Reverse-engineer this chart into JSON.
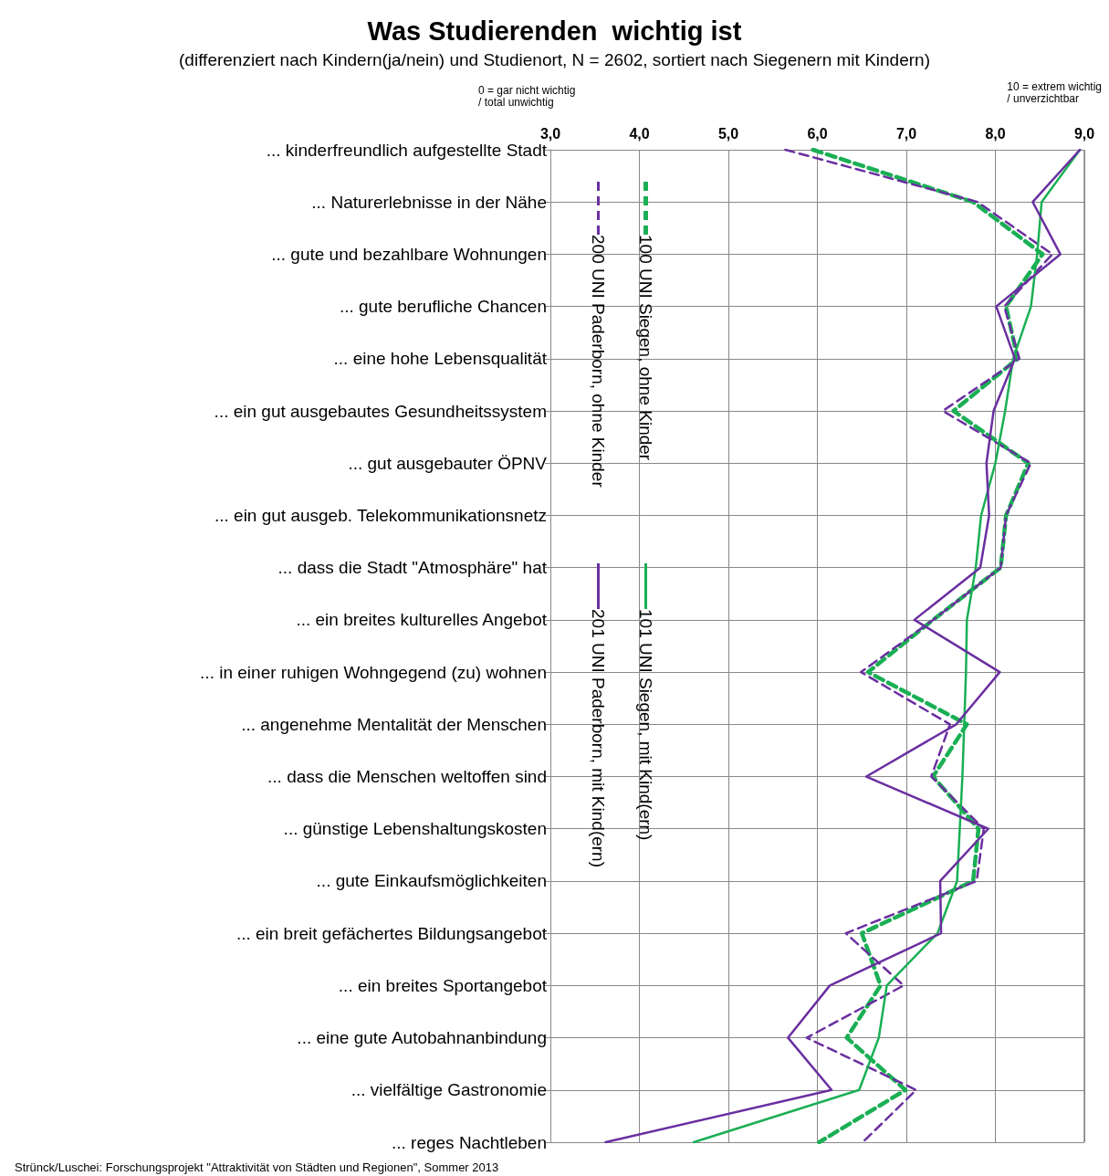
{
  "chart_data": {
    "type": "line",
    "orientation": "horizontal",
    "title": "Was Studierenden  wichtig ist",
    "subtitle": "(differenziert nach Kindern(ja/nein) und Studienort, N = 2602, sortiert nach Siegenern mit Kindern)",
    "annotations": [
      "0 = gar nicht wichtig\n/ total unwichtig",
      "10 = extrem wichtig\n/ unverzichtbar",
      "Strünck/Luschei: Forschungsprojekt \"Attraktivität von Städten und Regionen\", Sommer 2013"
    ],
    "categories": [
      "... kinderfreundlich aufgestellte Stadt",
      "... Naturerlebnisse in der Nähe",
      "... gute und bezahlbare Wohnungen",
      "... gute berufliche Chancen",
      "... eine hohe Lebensqualität",
      "... ein gut ausgebautes Gesundheitssystem",
      "... gut ausgebauter ÖPNV",
      "... ein gut ausgeb. Telekommunikationsnetz",
      "... dass die Stadt \"Atmosphäre\" hat",
      "... ein breites kulturelles Angebot",
      "... in einer ruhigen Wohngegend (zu) wohnen",
      "... angenehme Mentalität der Menschen",
      "... dass die Menschen weltoffen sind",
      "... günstige Lebenshaltungskosten",
      "... gute Einkaufsmöglichkeiten",
      "... ein breit gefächertes Bildungsangebot",
      "... ein breites Sportangebot",
      "... eine gute Autobahnanbindung",
      "... vielfältige Gastronomie",
      "... reges Nachtleben"
    ],
    "series": [
      {
        "name": "100 UNI Siegen, ohne Kinder",
        "color": "#1aaf54",
        "line_style": "dashed",
        "values": [
          5.95,
          7.75,
          8.53,
          8.12,
          8.25,
          7.53,
          8.37,
          8.12,
          8.06,
          7.3,
          6.57,
          7.68,
          7.3,
          7.81,
          7.75,
          6.5,
          6.71,
          6.33,
          6.99,
          6.02
        ]
      },
      {
        "name": "200 UNI Paderborn, ohne Kinder",
        "color": "#6a2fa0",
        "line_style": "dashed",
        "values": [
          5.64,
          7.8,
          8.64,
          8.1,
          8.27,
          7.41,
          8.4,
          8.12,
          8.06,
          7.3,
          6.49,
          7.49,
          7.28,
          7.87,
          7.79,
          6.32,
          6.97,
          5.88,
          7.11,
          6.51
        ]
      },
      {
        "name": "101 UNI Siegen, mit Kind(ern)",
        "color": "#1aaf54",
        "line_style": "solid",
        "values": [
          8.95,
          8.52,
          8.47,
          8.4,
          8.2,
          8.11,
          8.0,
          7.84,
          7.78,
          7.68,
          7.67,
          7.65,
          7.63,
          7.6,
          7.57,
          7.35,
          6.78,
          6.69,
          6.47,
          4.61
        ]
      },
      {
        "name": "201 UNI Paderborn, mit Kind(ern)",
        "color": "#6a2fa0",
        "line_style": "solid",
        "values": [
          8.95,
          8.42,
          8.73,
          8.01,
          8.22,
          7.98,
          7.9,
          7.93,
          7.83,
          7.09,
          8.05,
          7.56,
          6.55,
          7.92,
          7.38,
          7.39,
          6.14,
          5.67,
          6.16,
          3.62
        ]
      }
    ],
    "xlim": [
      3,
      9
    ],
    "xticks": [
      {
        "value": 3,
        "label": "3,0"
      },
      {
        "value": 4,
        "label": "4,0"
      },
      {
        "value": 5,
        "label": "5,0"
      },
      {
        "value": 6,
        "label": "6,0"
      },
      {
        "value": 7,
        "label": "7,0"
      },
      {
        "value": 8,
        "label": "8,0"
      },
      {
        "value": 9,
        "label": "9,0"
      }
    ],
    "grid": true,
    "legend": "top left",
    "marker": "none"
  }
}
